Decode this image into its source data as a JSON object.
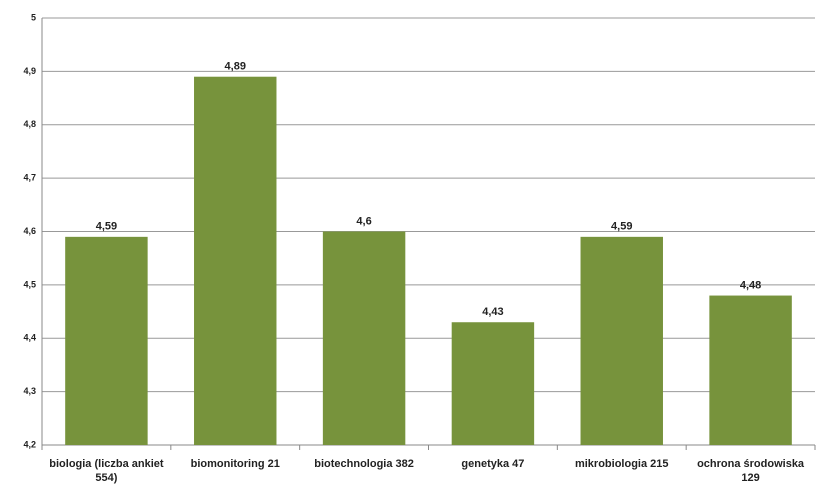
{
  "chart_data": {
    "type": "bar",
    "categories": [
      "biologia (liczba ankiet 554)",
      "biomonitoring 21",
      "biotechnologia 382",
      "genetyka 47",
      "mikrobiologia 215",
      "ochrona środowiska 129"
    ],
    "values": [
      4.59,
      4.89,
      4.6,
      4.43,
      4.59,
      4.48
    ],
    "value_labels": [
      "4,59",
      "4,89",
      "4,6",
      "4,43",
      "4,59",
      "4,48"
    ],
    "color": "#77933c",
    "ylim": [
      4.2,
      5
    ],
    "yticks": [
      {
        "value": 4.2,
        "label": "4,2"
      },
      {
        "value": 4.3,
        "label": "4,3"
      },
      {
        "value": 4.4,
        "label": "4,4"
      },
      {
        "value": 4.5,
        "label": "4,5"
      },
      {
        "value": 4.6,
        "label": "4,6"
      },
      {
        "value": 4.7,
        "label": "4,7"
      },
      {
        "value": 4.8,
        "label": "4,8"
      },
      {
        "value": 4.9,
        "label": "4,9"
      },
      5
    ],
    "grid": true
  }
}
